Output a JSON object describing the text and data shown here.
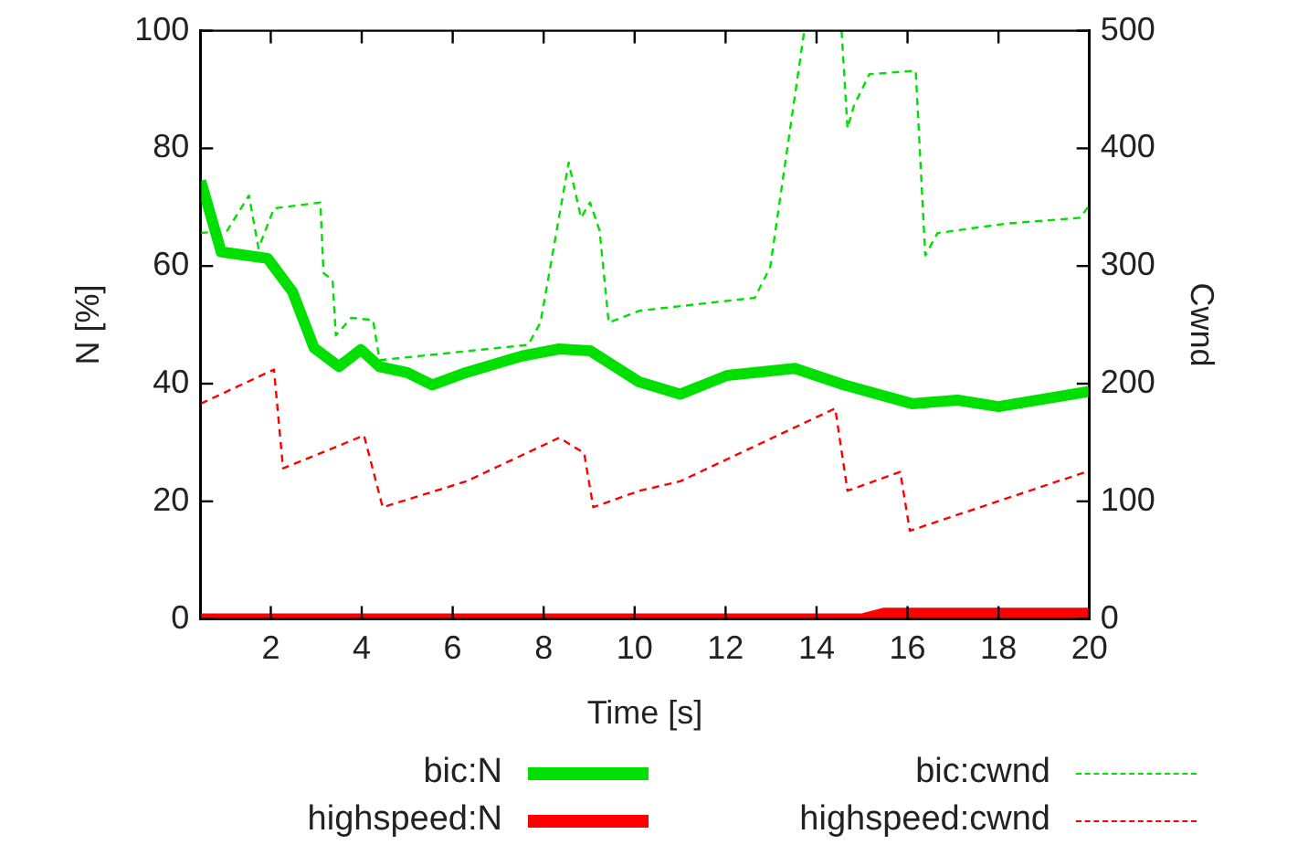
{
  "chart_data": {
    "type": "line",
    "xlabel": "Time [s]",
    "ylabel": "N [%]",
    "y2label": "Cwnd",
    "xlim": [
      0.45,
      20
    ],
    "xticks": [
      2,
      4,
      6,
      8,
      10,
      12,
      14,
      16,
      18,
      20
    ],
    "ylim": [
      0,
      100
    ],
    "yticks": [
      0,
      20,
      40,
      60,
      80,
      100
    ],
    "y2lim": [
      0,
      500
    ],
    "y2ticks": [
      0,
      100,
      200,
      300,
      400,
      500
    ],
    "grid": false,
    "legend": "bottom",
    "marker": "none",
    "series": [
      {
        "name": "bic:N",
        "color": "#00e000",
        "line_style": "solid",
        "x": [
          0.46,
          0.91,
          1.93,
          2.48,
          2.95,
          3.5,
          3.98,
          4.39,
          5.0,
          5.55,
          6.3,
          7.52,
          8.34,
          9.02,
          10.1,
          11.0,
          12.03,
          13.52,
          14.6,
          16.1,
          17.1,
          18.0,
          20
        ],
        "values": [
          74.5,
          62.4,
          61.3,
          55.6,
          46.1,
          42.9,
          45.8,
          42.9,
          41.9,
          39.8,
          41.9,
          44.7,
          45.9,
          45.6,
          40.3,
          38.2,
          41.4,
          42.6,
          39.8,
          36.6,
          37.2,
          36.1,
          38.7
        ]
      },
      {
        "name": "highspeed:N",
        "color": "#ff0000",
        "line_style": "solid",
        "x": [
          0.46,
          15.0,
          15.5,
          20
        ],
        "values": [
          0,
          0,
          1,
          1
        ]
      },
      {
        "name": "bic:cwnd",
        "color": "#00e000",
        "line_style": "dashed",
        "axis": "y2",
        "x": [
          0.46,
          1.04,
          1.52,
          1.73,
          2.07,
          3.09,
          3.16,
          3.36,
          3.43,
          3.77,
          4.25,
          4.39,
          7.66,
          7.93,
          8.55,
          8.82,
          9.02,
          9.23,
          9.43,
          10.11,
          12.64,
          12.98,
          13.73,
          14.1,
          14.55,
          14.68,
          14.82,
          15.16,
          16.18,
          16.39,
          16.66,
          18.16,
          19.8,
          20
        ],
        "values": [
          328,
          330,
          360,
          315,
          349,
          354,
          294,
          288,
          241,
          256,
          254,
          220,
          233,
          252,
          388,
          341,
          354,
          330,
          252,
          262,
          273,
          299,
          500,
          null,
          500,
          417,
          436,
          463,
          466,
          309,
          328,
          336,
          341,
          352
        ]
      },
      {
        "name": "highspeed:cwnd",
        "color": "#ff0000",
        "line_style": "dashed",
        "axis": "y2",
        "x": [
          0.46,
          2.07,
          2.27,
          4.05,
          4.46,
          6.3,
          8.34,
          8.89,
          9.09,
          10.11,
          11.0,
          14.41,
          14.68,
          15.84,
          16.05,
          20
        ],
        "values": [
          183,
          212,
          128,
          156,
          95,
          117,
          154,
          141,
          95,
          109,
          117,
          179,
          109,
          125,
          75,
          126
        ]
      }
    ]
  }
}
